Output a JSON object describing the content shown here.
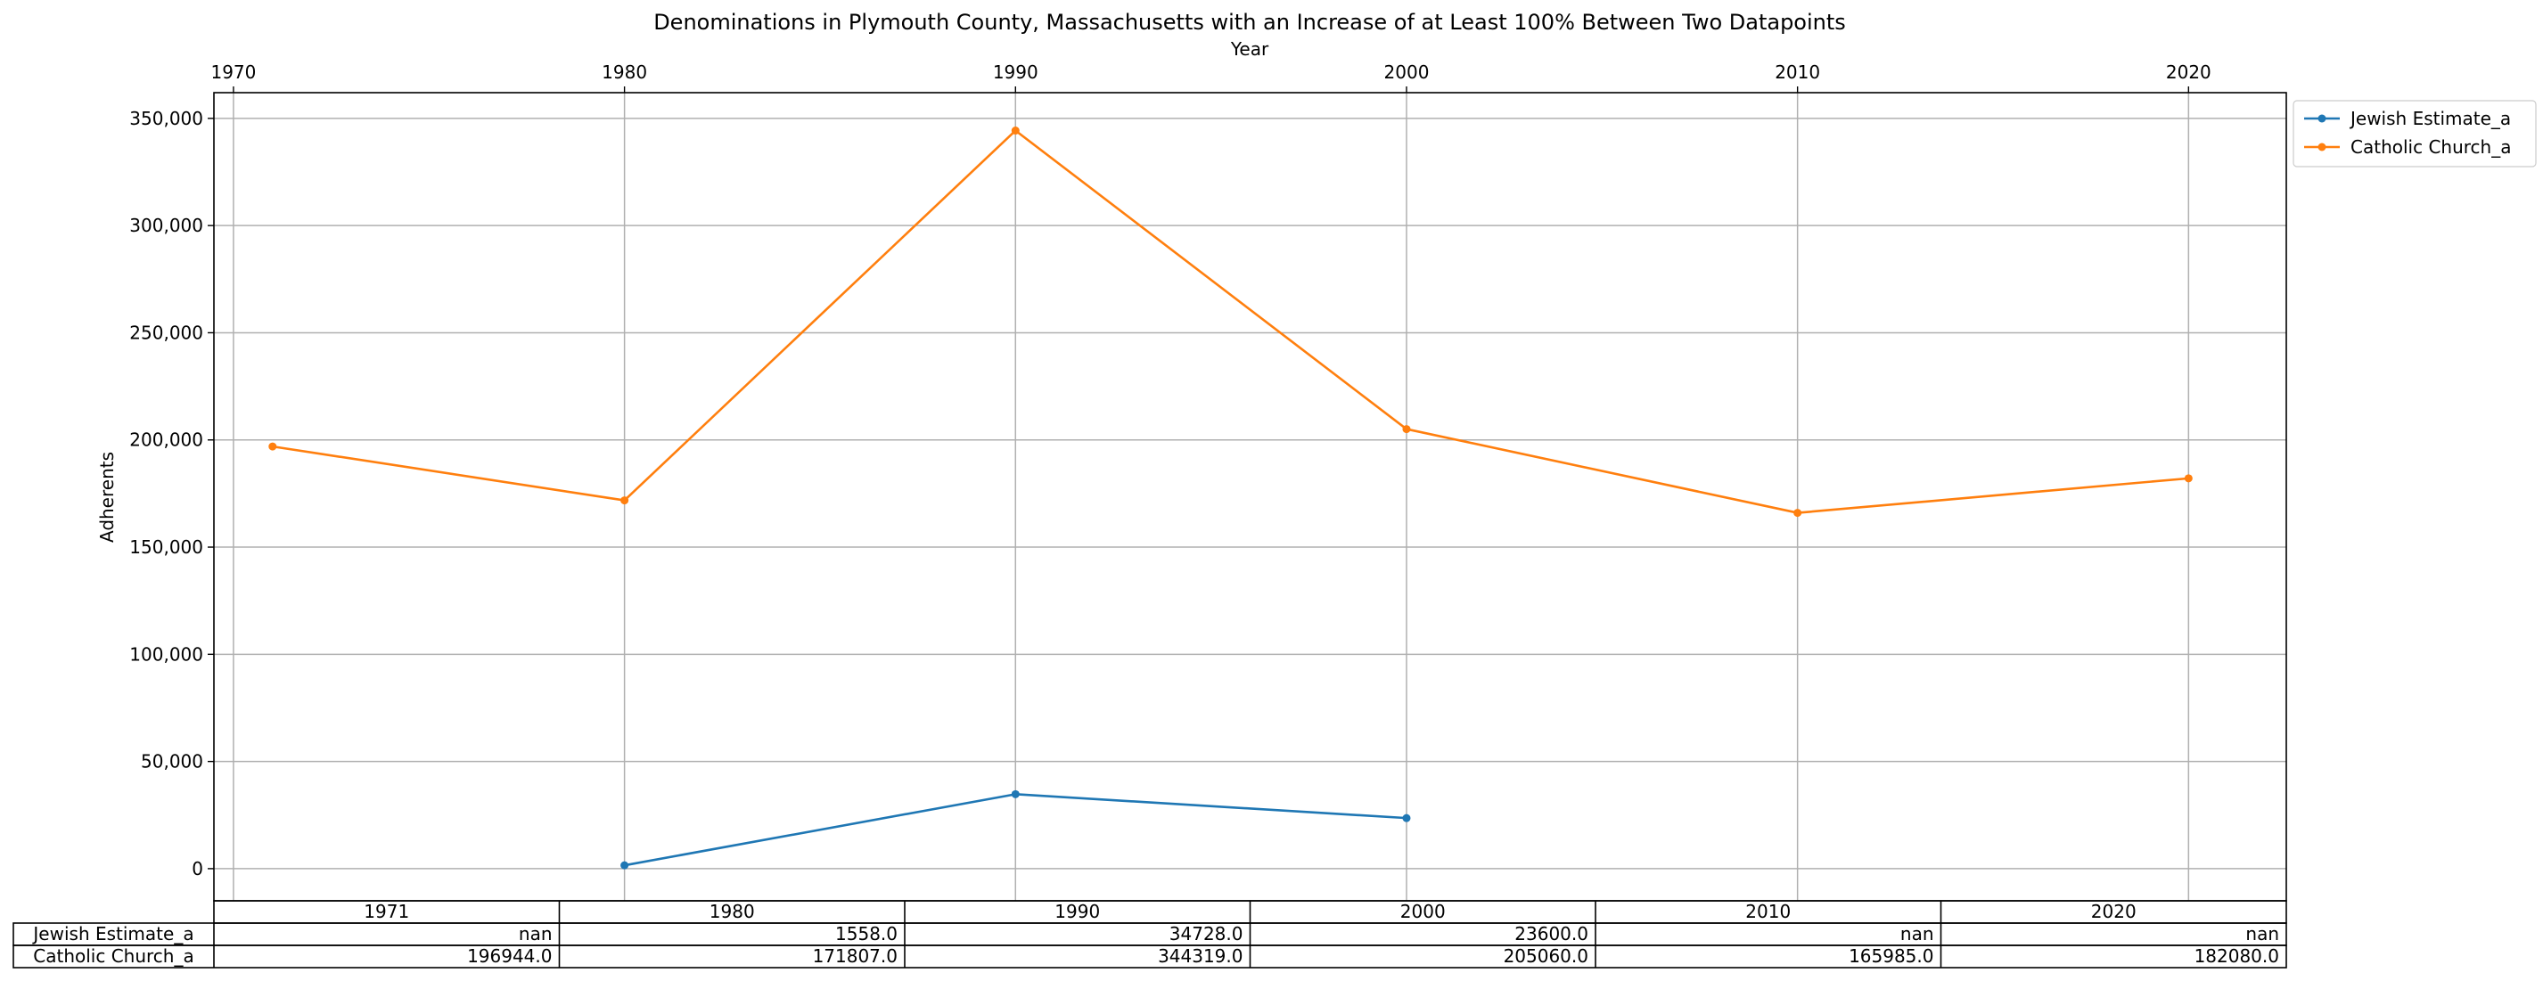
{
  "chart_data": {
    "type": "line",
    "title": "Denominations in Plymouth County, Massachusetts with an Increase of at Least 100% Between Two Datapoints",
    "xlabel": "Year",
    "ylabel": "Adherents",
    "x": [
      1971,
      1980,
      1990,
      2000,
      2010,
      2020
    ],
    "x_ticks": [
      1970,
      1980,
      1990,
      2000,
      2010,
      2020
    ],
    "xlim": [
      1969.5,
      2022.5
    ],
    "y_ticks": [
      0,
      50000,
      100000,
      150000,
      200000,
      250000,
      300000,
      350000
    ],
    "y_tick_labels": [
      "0",
      "50,000",
      "100,000",
      "150,000",
      "200,000",
      "250,000",
      "300,000",
      "350,000"
    ],
    "ylim": [
      -15000,
      362000
    ],
    "grid": true,
    "legend_position": "upper right, outside plot",
    "series": [
      {
        "name": "Jewish Estimate_a",
        "color": "#1f77b4",
        "values": [
          null,
          1558,
          34728,
          23600,
          null,
          null
        ]
      },
      {
        "name": "Catholic Church_a",
        "color": "#ff7f0e",
        "values": [
          196944,
          171807,
          344319,
          205060,
          165985,
          182080
        ]
      }
    ],
    "table": {
      "columns": [
        "1971",
        "1980",
        "1990",
        "2000",
        "2010",
        "2020"
      ],
      "rows": [
        {
          "label": "Jewish Estimate_a",
          "cells": [
            "nan",
            "1558.0",
            "34728.0",
            "23600.0",
            "nan",
            "nan"
          ]
        },
        {
          "label": "Catholic Church_a",
          "cells": [
            "196944.0",
            "171807.0",
            "344319.0",
            "205060.0",
            "165985.0",
            "182080.0"
          ]
        }
      ]
    }
  }
}
